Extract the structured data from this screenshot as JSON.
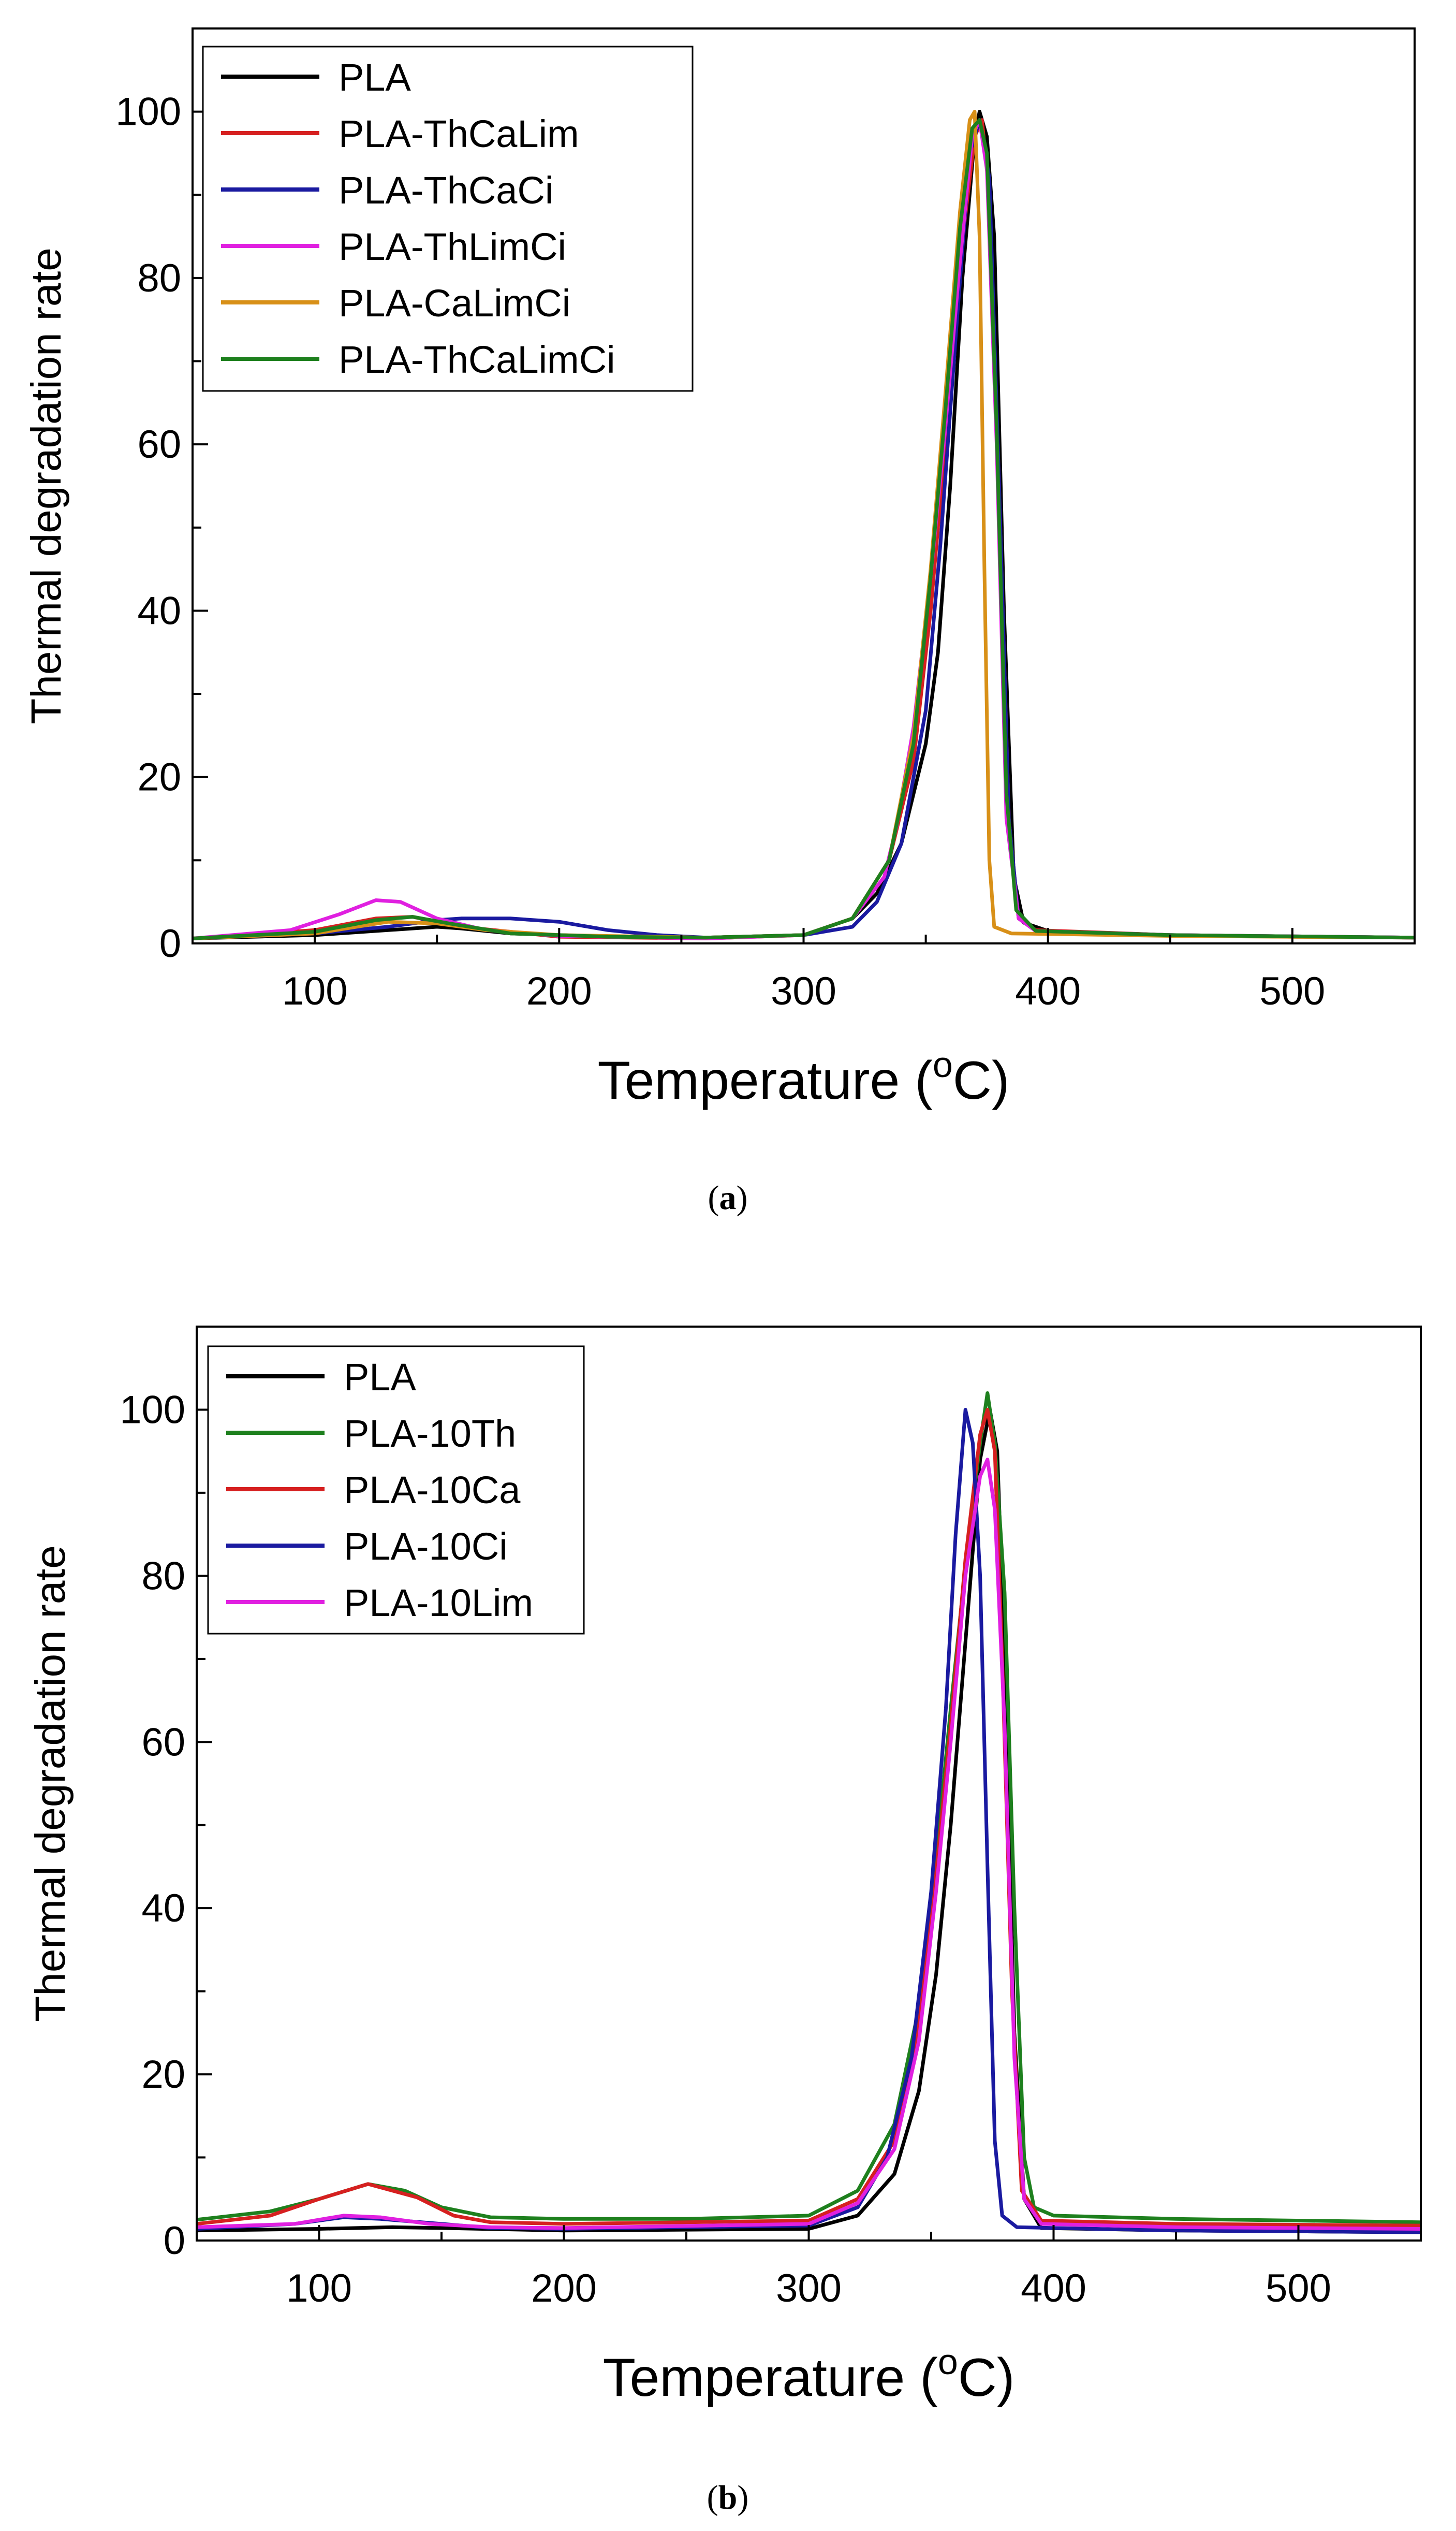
{
  "figure": {
    "panel_a_label": "a",
    "panel_b_label": "b"
  },
  "chart_data": [
    {
      "type": "line",
      "panel": "a",
      "xlabel": "Temperature",
      "xlabel_unit_sup": "o",
      "xlabel_unit": "C",
      "ylabel": "Thermal degradation rate",
      "xlim": [
        50,
        550
      ],
      "ylim": [
        0,
        110
      ],
      "xticks": [
        100,
        200,
        300,
        400,
        500
      ],
      "yticks": [
        0,
        20,
        40,
        60,
        80,
        100
      ],
      "legend_position": "top-left",
      "series": [
        {
          "name": "PLA",
          "color": "#000000",
          "points": [
            [
              50,
              0.6
            ],
            [
              100,
              1.0
            ],
            [
              130,
              1.6
            ],
            [
              150,
              2.0
            ],
            [
              160,
              1.8
            ],
            [
              180,
              1.2
            ],
            [
              220,
              0.8
            ],
            [
              260,
              0.7
            ],
            [
              300,
              1.0
            ],
            [
              320,
              3
            ],
            [
              330,
              6
            ],
            [
              340,
              12
            ],
            [
              350,
              24
            ],
            [
              355,
              35
            ],
            [
              360,
              55
            ],
            [
              365,
              80
            ],
            [
              370,
              97
            ],
            [
              372,
              100
            ],
            [
              375,
              97
            ],
            [
              378,
              85
            ],
            [
              382,
              40
            ],
            [
              386,
              8
            ],
            [
              390,
              2.5
            ],
            [
              400,
              1.5
            ],
            [
              450,
              1.0
            ],
            [
              500,
              0.8
            ],
            [
              550,
              0.7
            ]
          ]
        },
        {
          "name": "PLA-ThCaLim",
          "color": "#d62020",
          "points": [
            [
              50,
              0.6
            ],
            [
              100,
              1.6
            ],
            [
              125,
              3.0
            ],
            [
              140,
              3.2
            ],
            [
              160,
              2.0
            ],
            [
              200,
              0.8
            ],
            [
              260,
              0.6
            ],
            [
              300,
              1.0
            ],
            [
              320,
              3
            ],
            [
              335,
              10
            ],
            [
              345,
              22
            ],
            [
              352,
              40
            ],
            [
              358,
              60
            ],
            [
              364,
              82
            ],
            [
              370,
              97
            ],
            [
              373,
              99
            ],
            [
              376,
              90
            ],
            [
              380,
              55
            ],
            [
              384,
              15
            ],
            [
              388,
              3
            ],
            [
              395,
              1.6
            ],
            [
              450,
              1.0
            ],
            [
              550,
              0.7
            ]
          ]
        },
        {
          "name": "PLA-ThCaCi",
          "color": "#1a1aa0",
          "points": [
            [
              50,
              0.6
            ],
            [
              100,
              1.2
            ],
            [
              130,
              2.0
            ],
            [
              150,
              2.8
            ],
            [
              160,
              3.0
            ],
            [
              180,
              3.0
            ],
            [
              200,
              2.6
            ],
            [
              220,
              1.6
            ],
            [
              240,
              1.0
            ],
            [
              260,
              0.7
            ],
            [
              300,
              1.0
            ],
            [
              320,
              2
            ],
            [
              330,
              5
            ],
            [
              340,
              12
            ],
            [
              350,
              28
            ],
            [
              356,
              48
            ],
            [
              362,
              72
            ],
            [
              368,
              95
            ],
            [
              372,
              99
            ],
            [
              376,
              92
            ],
            [
              380,
              55
            ],
            [
              384,
              15
            ],
            [
              388,
              3
            ],
            [
              395,
              1.5
            ],
            [
              450,
              1.0
            ],
            [
              550,
              0.7
            ]
          ]
        },
        {
          "name": "PLA-ThLimCi",
          "color": "#e020e0",
          "points": [
            [
              50,
              0.6
            ],
            [
              90,
              1.6
            ],
            [
              110,
              3.5
            ],
            [
              125,
              5.2
            ],
            [
              135,
              5.0
            ],
            [
              150,
              3.0
            ],
            [
              170,
              1.6
            ],
            [
              200,
              0.9
            ],
            [
              260,
              0.6
            ],
            [
              300,
              1.0
            ],
            [
              320,
              3
            ],
            [
              333,
              8
            ],
            [
              338,
              14
            ],
            [
              345,
              26
            ],
            [
              352,
              44
            ],
            [
              358,
              62
            ],
            [
              364,
              82
            ],
            [
              369,
              97
            ],
            [
              372,
              99
            ],
            [
              375,
              93
            ],
            [
              379,
              60
            ],
            [
              383,
              15
            ],
            [
              388,
              3
            ],
            [
              395,
              1.5
            ],
            [
              450,
              1.0
            ],
            [
              550,
              0.7
            ]
          ]
        },
        {
          "name": "PLA-CaLimCi",
          "color": "#d89018",
          "points": [
            [
              50,
              0.6
            ],
            [
              100,
              1.2
            ],
            [
              130,
              2.6
            ],
            [
              150,
              2.4
            ],
            [
              170,
              1.6
            ],
            [
              200,
              1.0
            ],
            [
              260,
              0.7
            ],
            [
              300,
              1.0
            ],
            [
              320,
              3
            ],
            [
              335,
              10
            ],
            [
              345,
              25
            ],
            [
              352,
              45
            ],
            [
              358,
              66
            ],
            [
              364,
              88
            ],
            [
              368,
              99
            ],
            [
              370,
              100
            ],
            [
              372,
              85
            ],
            [
              374,
              45
            ],
            [
              376,
              10
            ],
            [
              378,
              2
            ],
            [
              385,
              1.2
            ],
            [
              450,
              0.9
            ],
            [
              550,
              0.7
            ]
          ]
        },
        {
          "name": "PLA-ThCaLimCi",
          "color": "#1e801e",
          "points": [
            [
              50,
              0.6
            ],
            [
              100,
              1.4
            ],
            [
              125,
              2.8
            ],
            [
              140,
              3.2
            ],
            [
              155,
              2.4
            ],
            [
              180,
              1.2
            ],
            [
              220,
              0.8
            ],
            [
              260,
              0.7
            ],
            [
              300,
              1.0
            ],
            [
              320,
              3
            ],
            [
              335,
              10
            ],
            [
              345,
              24
            ],
            [
              352,
              44
            ],
            [
              358,
              64
            ],
            [
              364,
              86
            ],
            [
              369,
              98
            ],
            [
              372,
              99
            ],
            [
              375,
              95
            ],
            [
              379,
              62
            ],
            [
              383,
              18
            ],
            [
              387,
              4
            ],
            [
              395,
              1.5
            ],
            [
              450,
              1.0
            ],
            [
              550,
              0.7
            ]
          ]
        }
      ]
    },
    {
      "type": "line",
      "panel": "b",
      "xlabel": "Temperature",
      "xlabel_unit_sup": "o",
      "xlabel_unit": "C",
      "ylabel": "Thermal degradation rate",
      "xlim": [
        50,
        550
      ],
      "ylim": [
        0,
        110
      ],
      "xticks": [
        100,
        200,
        300,
        400,
        500
      ],
      "yticks": [
        0,
        20,
        40,
        60,
        80,
        100
      ],
      "legend_position": "top-left",
      "series": [
        {
          "name": "PLA",
          "color": "#000000",
          "points": [
            [
              50,
              1.2
            ],
            [
              100,
              1.4
            ],
            [
              130,
              1.6
            ],
            [
              150,
              1.5
            ],
            [
              200,
              1.2
            ],
            [
              300,
              1.4
            ],
            [
              320,
              3
            ],
            [
              335,
              8
            ],
            [
              345,
              18
            ],
            [
              352,
              32
            ],
            [
              358,
              50
            ],
            [
              364,
              72
            ],
            [
              370,
              94
            ],
            [
              374,
              100
            ],
            [
              377,
              95
            ],
            [
              380,
              70
            ],
            [
              384,
              25
            ],
            [
              388,
              5
            ],
            [
              395,
              1.5
            ],
            [
              450,
              1.2
            ],
            [
              550,
              1.0
            ]
          ]
        },
        {
          "name": "PLA-10Th",
          "color": "#1e801e",
          "points": [
            [
              50,
              2.5
            ],
            [
              80,
              3.5
            ],
            [
              100,
              5.0
            ],
            [
              120,
              6.8
            ],
            [
              135,
              6.0
            ],
            [
              150,
              4.0
            ],
            [
              170,
              2.8
            ],
            [
              200,
              2.6
            ],
            [
              250,
              2.6
            ],
            [
              300,
              3.0
            ],
            [
              320,
              6
            ],
            [
              335,
              14
            ],
            [
              345,
              28
            ],
            [
              352,
              46
            ],
            [
              358,
              64
            ],
            [
              365,
              84
            ],
            [
              370,
              96
            ],
            [
              373,
              102
            ],
            [
              376,
              96
            ],
            [
              380,
              78
            ],
            [
              384,
              40
            ],
            [
              388,
              10
            ],
            [
              392,
              4
            ],
            [
              400,
              3
            ],
            [
              450,
              2.6
            ],
            [
              550,
              2.2
            ]
          ]
        },
        {
          "name": "PLA-10Ca",
          "color": "#d62020",
          "points": [
            [
              50,
              2.0
            ],
            [
              80,
              3.0
            ],
            [
              100,
              5.0
            ],
            [
              120,
              6.8
            ],
            [
              140,
              5.2
            ],
            [
              155,
              3.0
            ],
            [
              170,
              2.2
            ],
            [
              200,
              2.0
            ],
            [
              300,
              2.4
            ],
            [
              320,
              5
            ],
            [
              335,
              12
            ],
            [
              345,
              26
            ],
            [
              352,
              44
            ],
            [
              358,
              62
            ],
            [
              364,
              82
            ],
            [
              370,
              97
            ],
            [
              373,
              100
            ],
            [
              376,
              95
            ],
            [
              379,
              70
            ],
            [
              383,
              30
            ],
            [
              387,
              6
            ],
            [
              395,
              2.4
            ],
            [
              450,
              2.0
            ],
            [
              550,
              1.8
            ]
          ]
        },
        {
          "name": "PLA-10Ci",
          "color": "#1a1aa0",
          "points": [
            [
              50,
              1.4
            ],
            [
              90,
              2.0
            ],
            [
              110,
              2.8
            ],
            [
              125,
              2.6
            ],
            [
              150,
              2.0
            ],
            [
              170,
              1.5
            ],
            [
              200,
              1.4
            ],
            [
              300,
              1.8
            ],
            [
              320,
              4
            ],
            [
              332,
              10
            ],
            [
              342,
              22
            ],
            [
              350,
              42
            ],
            [
              356,
              64
            ],
            [
              360,
              85
            ],
            [
              364,
              100
            ],
            [
              367,
              96
            ],
            [
              370,
              80
            ],
            [
              373,
              45
            ],
            [
              376,
              12
            ],
            [
              379,
              3
            ],
            [
              385,
              1.6
            ],
            [
              450,
              1.2
            ],
            [
              550,
              1.0
            ]
          ]
        },
        {
          "name": "PLA-10Lim",
          "color": "#e020e0",
          "points": [
            [
              50,
              1.6
            ],
            [
              90,
              2.0
            ],
            [
              110,
              3.0
            ],
            [
              125,
              2.8
            ],
            [
              145,
              2.0
            ],
            [
              170,
              1.6
            ],
            [
              200,
              1.5
            ],
            [
              300,
              2.0
            ],
            [
              320,
              4.5
            ],
            [
              335,
              11
            ],
            [
              345,
              24
            ],
            [
              352,
              42
            ],
            [
              358,
              60
            ],
            [
              364,
              80
            ],
            [
              370,
              92
            ],
            [
              373,
              94
            ],
            [
              376,
              88
            ],
            [
              380,
              62
            ],
            [
              384,
              22
            ],
            [
              388,
              5
            ],
            [
              395,
              2
            ],
            [
              450,
              1.6
            ],
            [
              550,
              1.4
            ]
          ]
        }
      ]
    }
  ]
}
